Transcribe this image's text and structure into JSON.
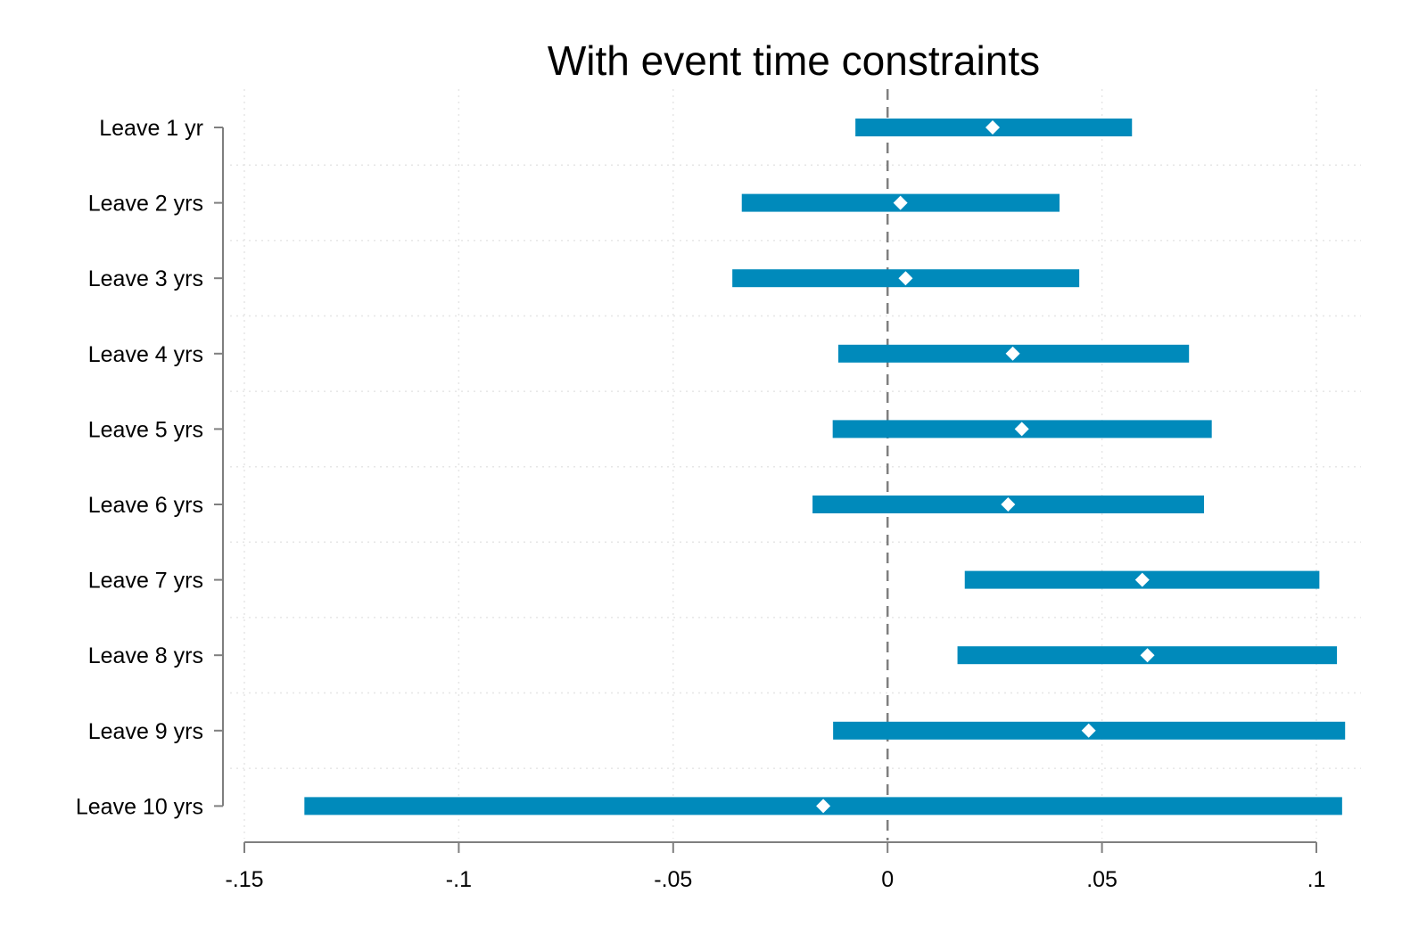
{
  "chart_data": {
    "type": "coefficient-plot",
    "title": "With event time constraints",
    "categories": [
      "Leave 1 yr",
      "Leave 2 yrs",
      "Leave 3 yrs",
      "Leave 4 yrs",
      "Leave 5 yrs",
      "Leave 6 yrs",
      "Leave 7 yrs",
      "Leave 8 yrs",
      "Leave 9 yrs",
      "Leave 10 yrs"
    ],
    "series": [
      {
        "estimates": [
          0.0245,
          0.003,
          0.0042,
          0.0292,
          0.0313,
          0.0281,
          0.0594,
          0.0606,
          0.0469,
          -0.015
        ],
        "ci_low": [
          -0.0075,
          -0.034,
          -0.0362,
          -0.0115,
          -0.0128,
          -0.0175,
          0.018,
          0.0163,
          -0.0127,
          -0.136
        ],
        "ci_high": [
          0.057,
          0.0401,
          0.0447,
          0.0703,
          0.0756,
          0.0738,
          0.1007,
          0.1048,
          0.1067,
          0.106
        ]
      }
    ],
    "x_ticks": [
      -0.15,
      -0.1,
      -0.05,
      0,
      0.05,
      0.1
    ],
    "x_tick_labels": [
      "-.15",
      "-.1",
      "-.05",
      "0",
      ".05",
      ".1"
    ],
    "xlim": [
      -0.15,
      0.1
    ],
    "reference_line": 0,
    "grid": true,
    "legend": "none",
    "colors": {
      "bar": "#008abb",
      "marker": "#ffffff",
      "grid": "#e6e6e6",
      "axis": "#7f7f7f",
      "reference": "#7f7f7f"
    }
  }
}
